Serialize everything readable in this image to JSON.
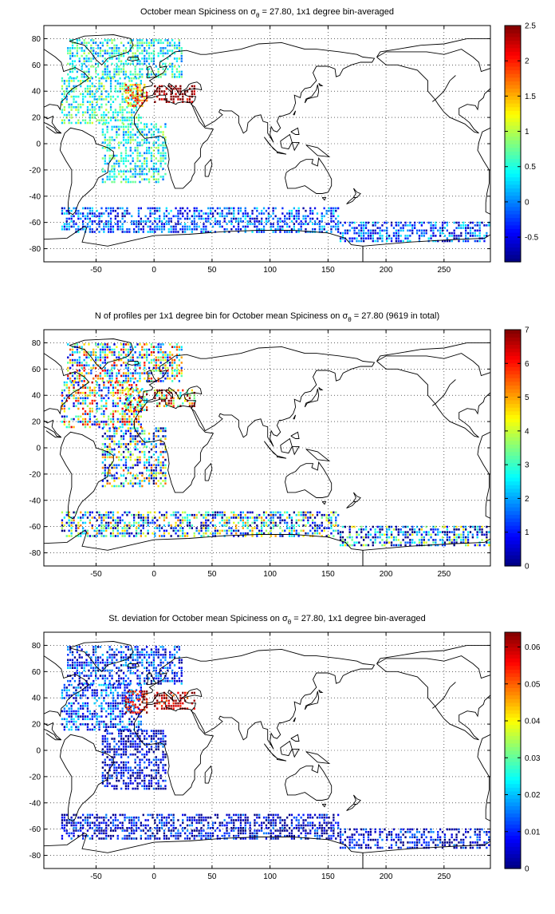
{
  "chart_data": [
    {
      "type": "heatmap",
      "title": "October mean Spiciness on σθ = 27.80, 1x1 degree bin-averaged",
      "title_parts": {
        "prefix": "October mean Spiciness on σ",
        "sub": "θ",
        "suffix": " = 27.80, 1x1 degree bin-averaged"
      },
      "xlim": [
        -95,
        290
      ],
      "ylim": [
        -90,
        90
      ],
      "xticks": [
        -50,
        0,
        50,
        100,
        150,
        200,
        250
      ],
      "yticks": [
        -80,
        -60,
        -40,
        -20,
        0,
        20,
        40,
        60,
        80
      ],
      "grid": true,
      "colormap": "jet",
      "colorbar": {
        "min": -0.85,
        "max": 2.5,
        "ticks": [
          -0.5,
          0,
          0.5,
          1,
          1.5,
          2,
          2.5
        ],
        "labels": [
          "-0.5",
          "0",
          "0.5",
          "1",
          "1.5",
          "2",
          "2.5"
        ]
      },
      "regions": [
        {
          "lon": [
            -75,
            25
          ],
          "lat": [
            50,
            80
          ],
          "value": 0.45
        },
        {
          "lon": [
            -80,
            -10
          ],
          "lat": [
            15,
            50
          ],
          "value": 0.55
        },
        {
          "lon": [
            -25,
            -5
          ],
          "lat": [
            28,
            45
          ],
          "value": 1.6
        },
        {
          "lon": [
            -15,
            -8
          ],
          "lat": [
            33,
            40
          ],
          "value": 2.1
        },
        {
          "lon": [
            0,
            35
          ],
          "lat": [
            31,
            45
          ],
          "value": 2.5
        },
        {
          "lon": [
            -45,
            10
          ],
          "lat": [
            -30,
            15
          ],
          "value": 0.45
        },
        {
          "lon": [
            -80,
            160
          ],
          "lat": [
            -68,
            -48
          ],
          "value": -0.2
        },
        {
          "lon": [
            160,
            290
          ],
          "lat": [
            -75,
            -60
          ],
          "value": -0.2
        }
      ]
    },
    {
      "type": "heatmap",
      "title": "N of profiles per 1x1 degree bin for October mean Spiciness on σθ = 27.80 (9619 in total)",
      "title_parts": {
        "prefix": "N of profiles per 1x1 degree bin for October mean Spiciness on σ",
        "sub": "θ",
        "suffix": " = 27.80 (9619 in total)"
      },
      "xlim": [
        -95,
        290
      ],
      "ylim": [
        -90,
        90
      ],
      "xticks": [
        -50,
        0,
        50,
        100,
        150,
        200,
        250
      ],
      "yticks": [
        -80,
        -60,
        -40,
        -20,
        0,
        20,
        40,
        60,
        80
      ],
      "grid": true,
      "colormap": "jet",
      "colorbar": {
        "min": 0,
        "max": 7,
        "ticks": [
          0,
          1,
          2,
          3,
          4,
          5,
          6,
          7
        ],
        "labels": [
          "0",
          "1",
          "2",
          "3",
          "4",
          "5",
          "6",
          "7"
        ]
      },
      "regions": [
        {
          "lon": [
            -75,
            25
          ],
          "lat": [
            50,
            80
          ],
          "value": 3.5
        },
        {
          "lon": [
            -80,
            -10
          ],
          "lat": [
            15,
            50
          ],
          "value": 3.5
        },
        {
          "lon": [
            -25,
            -5
          ],
          "lat": [
            28,
            45
          ],
          "value": 5
        },
        {
          "lon": [
            0,
            35
          ],
          "lat": [
            31,
            45
          ],
          "value": 5.5
        },
        {
          "lon": [
            -45,
            10
          ],
          "lat": [
            -30,
            15
          ],
          "value": 2.5
        },
        {
          "lon": [
            -80,
            160
          ],
          "lat": [
            -68,
            -48
          ],
          "value": 2.2
        },
        {
          "lon": [
            160,
            290
          ],
          "lat": [
            -75,
            -60
          ],
          "value": 1.5
        }
      ]
    },
    {
      "type": "heatmap",
      "title": "St. deviation for October mean Spiciness on σθ = 27.80, 1x1 degree bin-averaged",
      "title_parts": {
        "prefix": "St. deviation for October mean Spiciness on σ",
        "sub": "θ",
        "suffix": " = 27.80, 1x1 degree bin-averaged"
      },
      "xlim": [
        -95,
        290
      ],
      "ylim": [
        -90,
        90
      ],
      "xticks": [
        -50,
        0,
        50,
        100,
        150,
        200,
        250
      ],
      "yticks": [
        -80,
        -60,
        -40,
        -20,
        0,
        20,
        40,
        60,
        80
      ],
      "grid": true,
      "colormap": "jet",
      "colorbar": {
        "min": 0,
        "max": 0.064,
        "ticks": [
          0,
          0.01,
          0.02,
          0.03,
          0.04,
          0.05,
          0.06
        ],
        "labels": [
          "0",
          "0.01",
          "0.02",
          "0.03",
          "0.04",
          "0.05",
          "0.06"
        ]
      },
      "regions": [
        {
          "lon": [
            -75,
            25
          ],
          "lat": [
            50,
            80
          ],
          "value": 0.01
        },
        {
          "lon": [
            -80,
            -10
          ],
          "lat": [
            15,
            50
          ],
          "value": 0.012
        },
        {
          "lon": [
            -25,
            -5
          ],
          "lat": [
            28,
            45
          ],
          "value": 0.06
        },
        {
          "lon": [
            0,
            35
          ],
          "lat": [
            31,
            45
          ],
          "value": 0.06
        },
        {
          "lon": [
            -45,
            10
          ],
          "lat": [
            -30,
            15
          ],
          "value": 0.005
        },
        {
          "lon": [
            -80,
            160
          ],
          "lat": [
            -68,
            -48
          ],
          "value": 0.006
        },
        {
          "lon": [
            160,
            290
          ],
          "lat": [
            -75,
            -60
          ],
          "value": 0.006
        }
      ]
    }
  ]
}
